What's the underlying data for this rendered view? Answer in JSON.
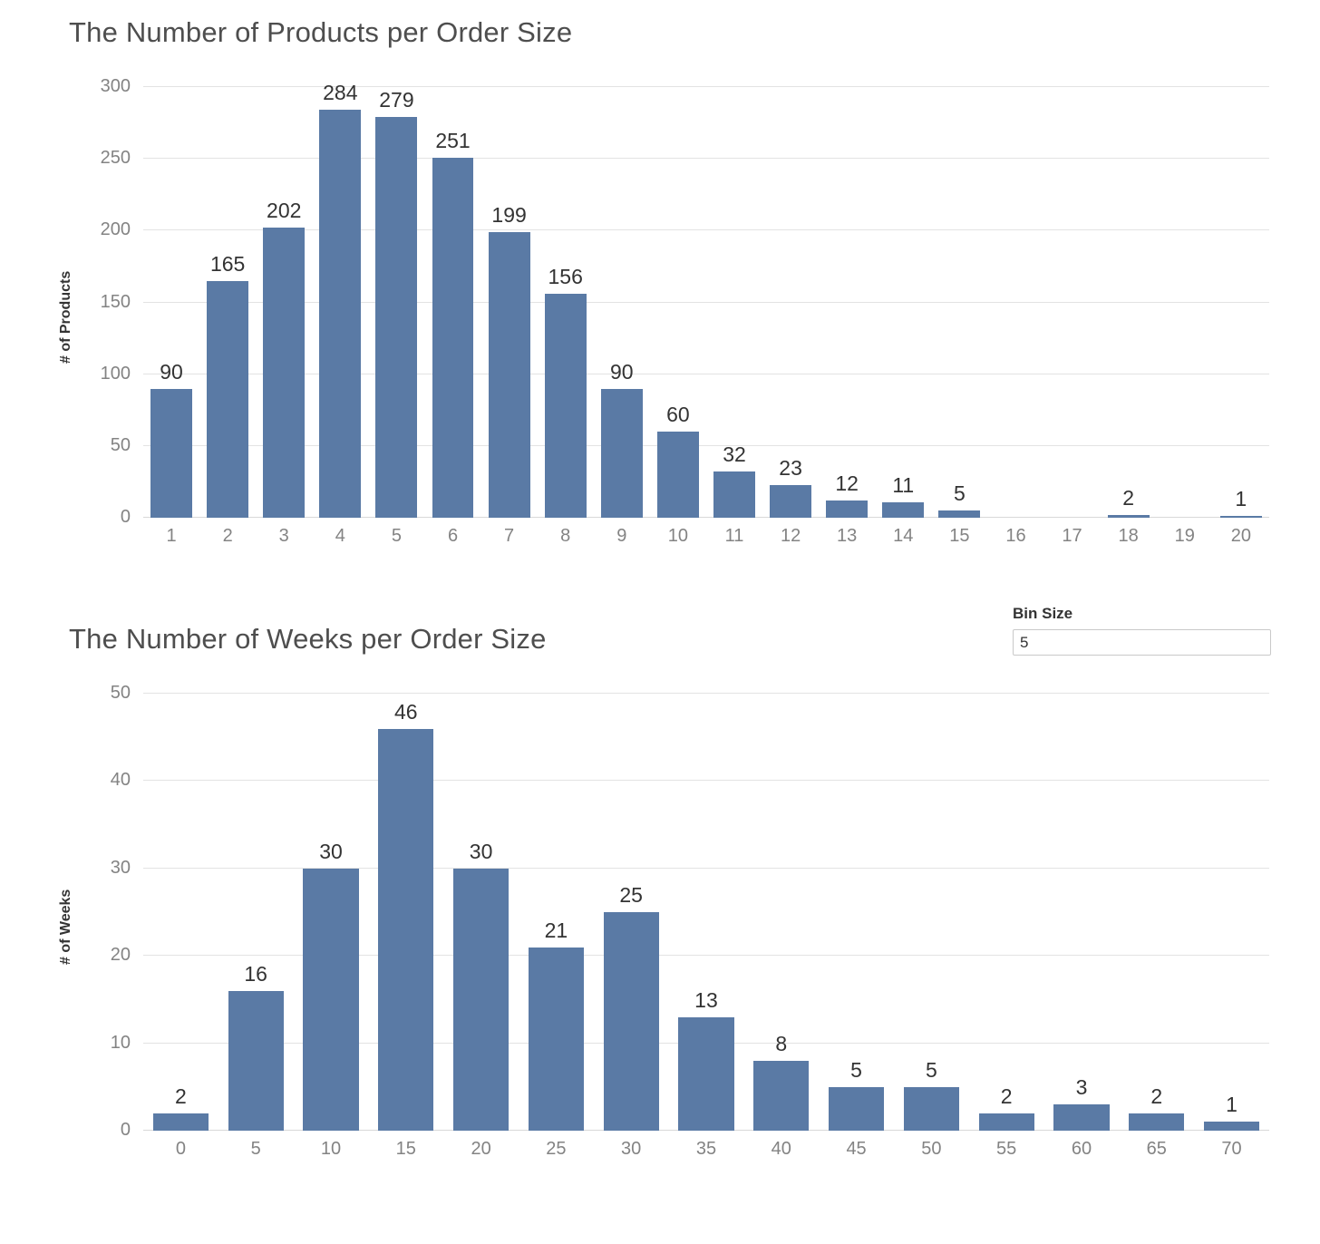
{
  "chart_data": [
    {
      "type": "bar",
      "title": "The Number of Products per Order Size",
      "ylabel": "# of Products",
      "xlabel": "",
      "categories": [
        "1",
        "2",
        "3",
        "4",
        "5",
        "6",
        "7",
        "8",
        "9",
        "10",
        "11",
        "12",
        "13",
        "14",
        "15",
        "16",
        "17",
        "18",
        "19",
        "20"
      ],
      "values": [
        90,
        165,
        202,
        284,
        279,
        251,
        199,
        156,
        90,
        60,
        32,
        23,
        12,
        11,
        5,
        null,
        null,
        2,
        null,
        1
      ],
      "yticks": [
        0,
        50,
        100,
        150,
        200,
        250,
        300
      ],
      "ylim": [
        0,
        300
      ],
      "grid": true,
      "legend": "none",
      "bar_color": "#5a7aa5"
    },
    {
      "type": "bar",
      "title": "The Number of Weeks per Order Size",
      "ylabel": "# of Weeks",
      "xlabel": "",
      "categories": [
        "0",
        "5",
        "10",
        "15",
        "20",
        "25",
        "30",
        "35",
        "40",
        "45",
        "50",
        "55",
        "60",
        "65",
        "70"
      ],
      "values": [
        2,
        16,
        30,
        46,
        30,
        21,
        25,
        13,
        8,
        5,
        5,
        2,
        3,
        2,
        1
      ],
      "yticks": [
        0,
        10,
        20,
        30,
        40,
        50
      ],
      "ylim": [
        0,
        50
      ],
      "grid": true,
      "legend": "none",
      "bar_color": "#5a7aa5"
    }
  ],
  "controls": {
    "bin_size": {
      "label": "Bin Size",
      "value": "5"
    }
  }
}
